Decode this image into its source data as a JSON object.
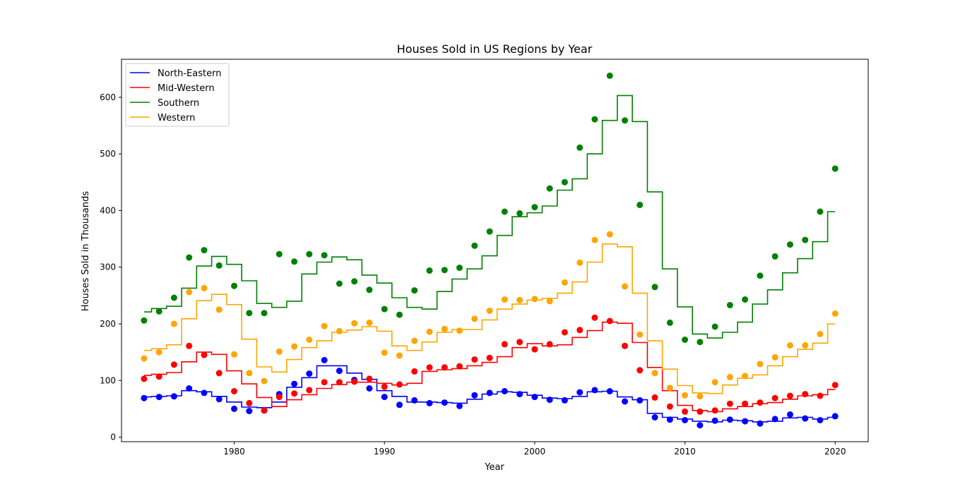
{
  "chart_data": {
    "type": "line",
    "title": "Houses Sold in US Regions by Year",
    "xlabel": "Year",
    "ylabel": "Houses Sold in Thousands",
    "xlim": [
      1972.5,
      2022.2
    ],
    "ylim": [
      -8,
      667
    ],
    "xticks": [
      1980,
      1990,
      2000,
      2010,
      2020
    ],
    "yticks": [
      0,
      100,
      200,
      300,
      400,
      500,
      600
    ],
    "grid": false,
    "legend_position": "top-left",
    "x": [
      1974,
      1975,
      1976,
      1977,
      1978,
      1979,
      1980,
      1981,
      1982,
      1983,
      1984,
      1985,
      1986,
      1987,
      1988,
      1989,
      1990,
      1991,
      1992,
      1993,
      1994,
      1995,
      1996,
      1997,
      1998,
      1999,
      2000,
      2001,
      2002,
      2003,
      2004,
      2005,
      2006,
      2007,
      2008,
      2009,
      2010,
      2011,
      2012,
      2013,
      2014,
      2015,
      2016,
      2017,
      2018,
      2019,
      2020
    ],
    "series": [
      {
        "name": "North-Eastern",
        "color": "#0000ff",
        "values": [
          69,
          71,
          72,
          86,
          78,
          67,
          50,
          46,
          47,
          76,
          94,
          112,
          136,
          117,
          101,
          86,
          71,
          57,
          65,
          60,
          61,
          55,
          74,
          78,
          81,
          76,
          71,
          66,
          65,
          79,
          83,
          81,
          63,
          65,
          35,
          31,
          30,
          21,
          29,
          31,
          28,
          24,
          32,
          40,
          33,
          30,
          37
        ],
        "step_values": [
          71,
          72,
          73,
          82,
          80,
          72,
          62,
          53,
          52,
          62,
          88,
          105,
          126,
          126,
          113,
          102,
          82,
          72,
          62,
          62,
          61,
          60,
          67,
          76,
          80,
          79,
          74,
          69,
          68,
          72,
          80,
          81,
          71,
          66,
          42,
          35,
          32,
          28,
          27,
          30,
          29,
          27,
          28,
          34,
          35,
          32,
          35
        ]
      },
      {
        "name": "Mid-Western",
        "color": "#ff0000",
        "values": [
          103,
          107,
          128,
          161,
          145,
          113,
          81,
          60,
          47,
          71,
          77,
          83,
          97,
          97,
          98,
          103,
          89,
          93,
          116,
          123,
          123,
          125,
          137,
          140,
          164,
          168,
          155,
          164,
          185,
          189,
          211,
          205,
          161,
          118,
          70,
          54,
          45,
          45,
          47,
          59,
          59,
          61,
          69,
          73,
          76,
          73,
          92
        ],
        "step_values": [
          109,
          111,
          114,
          133,
          150,
          146,
          117,
          94,
          70,
          54,
          66,
          75,
          86,
          93,
          97,
          97,
          95,
          92,
          95,
          116,
          119,
          121,
          126,
          132,
          142,
          158,
          165,
          161,
          163,
          176,
          188,
          203,
          201,
          167,
          123,
          82,
          56,
          47,
          45,
          50,
          54,
          59,
          61,
          67,
          73,
          75,
          84
        ]
      },
      {
        "name": "Southern",
        "color": "#008000",
        "values": [
          206,
          222,
          246,
          317,
          330,
          303,
          267,
          219,
          219,
          323,
          310,
          323,
          321,
          271,
          275,
          260,
          226,
          216,
          259,
          294,
          295,
          299,
          338,
          363,
          398,
          395,
          406,
          439,
          450,
          511,
          561,
          638,
          559,
          410,
          265,
          202,
          172,
          168,
          195,
          233,
          243,
          285,
          319,
          340,
          348,
          398,
          474
        ],
        "step_values": [
          221,
          227,
          231,
          263,
          302,
          319,
          305,
          276,
          236,
          229,
          240,
          288,
          309,
          318,
          313,
          286,
          272,
          246,
          229,
          226,
          257,
          279,
          297,
          320,
          356,
          389,
          396,
          408,
          436,
          456,
          500,
          559,
          603,
          557,
          433,
          297,
          230,
          182,
          175,
          185,
          203,
          235,
          260,
          290,
          315,
          345,
          398
        ]
      },
      {
        "name": "Western",
        "color": "#ffa500",
        "values": [
          139,
          150,
          200,
          256,
          263,
          225,
          146,
          113,
          99,
          151,
          160,
          172,
          196,
          187,
          201,
          202,
          149,
          144,
          170,
          186,
          191,
          188,
          209,
          223,
          243,
          242,
          244,
          240,
          273,
          308,
          348,
          358,
          266,
          181,
          113,
          87,
          74,
          72,
          97,
          106,
          108,
          129,
          141,
          162,
          162,
          182,
          218
        ],
        "step_values": [
          153,
          156,
          163,
          209,
          241,
          252,
          234,
          173,
          124,
          115,
          137,
          158,
          170,
          185,
          189,
          195,
          187,
          161,
          153,
          168,
          185,
          190,
          190,
          207,
          226,
          235,
          242,
          245,
          254,
          274,
          309,
          341,
          336,
          254,
          170,
          120,
          91,
          78,
          77,
          92,
          104,
          110,
          126,
          142,
          155,
          166,
          200
        ]
      }
    ]
  }
}
